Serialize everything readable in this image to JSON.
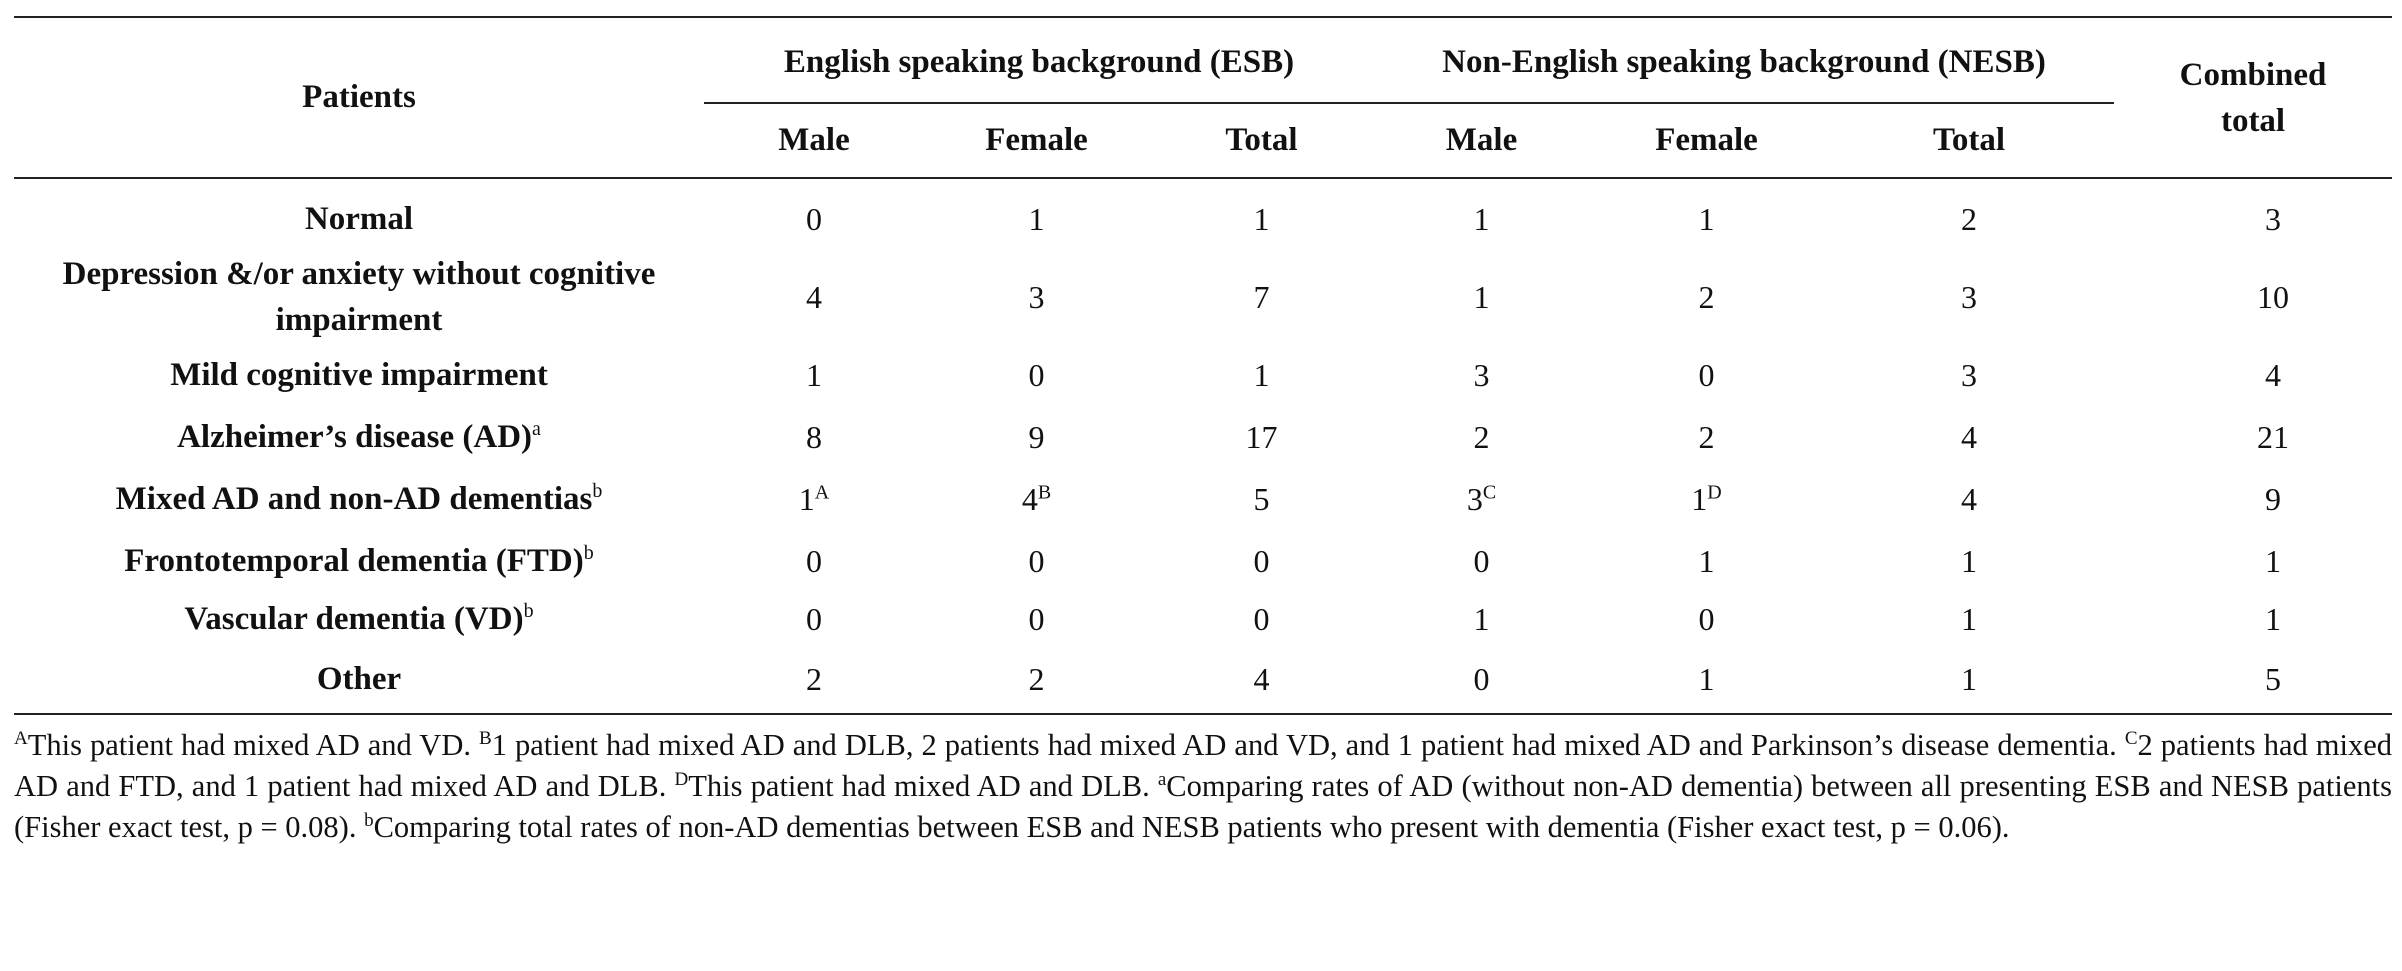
{
  "table": {
    "header": {
      "patients": "Patients",
      "esb_group": "English speaking background (ESB)",
      "nesb_group": "Non-English speaking background (NESB)",
      "combined": "Combined total",
      "sub": [
        "Male",
        "Female",
        "Total",
        "Male",
        "Female",
        "Total"
      ]
    },
    "rows": [
      {
        "label": "Normal",
        "sup": "",
        "cells": [
          {
            "v": "0"
          },
          {
            "v": "1"
          },
          {
            "v": "1"
          },
          {
            "v": "1"
          },
          {
            "v": "1"
          },
          {
            "v": "2"
          },
          {
            "v": "3"
          }
        ]
      },
      {
        "label": "Depression &/or anxiety without cognitive impairment",
        "sup": "",
        "cells": [
          {
            "v": "4"
          },
          {
            "v": "3"
          },
          {
            "v": "7"
          },
          {
            "v": "1"
          },
          {
            "v": "2"
          },
          {
            "v": "3"
          },
          {
            "v": "10"
          }
        ]
      },
      {
        "label": "Mild cognitive impairment",
        "sup": "",
        "cells": [
          {
            "v": "1"
          },
          {
            "v": "0"
          },
          {
            "v": "1"
          },
          {
            "v": "3"
          },
          {
            "v": "0"
          },
          {
            "v": "3"
          },
          {
            "v": "4"
          }
        ]
      },
      {
        "label": "Alzheimer’s disease (AD)",
        "sup": "a",
        "cells": [
          {
            "v": "8"
          },
          {
            "v": "9"
          },
          {
            "v": "17"
          },
          {
            "v": "2"
          },
          {
            "v": "2"
          },
          {
            "v": "4"
          },
          {
            "v": "21"
          }
        ]
      },
      {
        "label": "Mixed AD and non-AD dementias",
        "sup": "b",
        "cells": [
          {
            "v": "1",
            "sup": "A"
          },
          {
            "v": "4",
            "sup": "B"
          },
          {
            "v": "5"
          },
          {
            "v": "3",
            "sup": "C"
          },
          {
            "v": "1",
            "sup": "D"
          },
          {
            "v": "4"
          },
          {
            "v": "9"
          }
        ]
      },
      {
        "label": "Frontotemporal dementia (FTD)",
        "sup": "b",
        "cells": [
          {
            "v": "0"
          },
          {
            "v": "0"
          },
          {
            "v": "0"
          },
          {
            "v": "0"
          },
          {
            "v": "1"
          },
          {
            "v": "1"
          },
          {
            "v": "1"
          }
        ]
      },
      {
        "label": "Vascular dementia (VD)",
        "sup": "b",
        "cells": [
          {
            "v": "0"
          },
          {
            "v": "0"
          },
          {
            "v": "0"
          },
          {
            "v": "1"
          },
          {
            "v": "0"
          },
          {
            "v": "1"
          },
          {
            "v": "1"
          }
        ]
      },
      {
        "label": "Other",
        "sup": "",
        "cells": [
          {
            "v": "2"
          },
          {
            "v": "2"
          },
          {
            "v": "4"
          },
          {
            "v": "0"
          },
          {
            "v": "1"
          },
          {
            "v": "1"
          },
          {
            "v": "5"
          }
        ]
      }
    ]
  },
  "footnotes": [
    {
      "mark": "A",
      "text": "This patient had mixed AD and VD. "
    },
    {
      "mark": "B",
      "text": "1 patient had mixed AD and DLB, 2 patients had mixed AD and VD, and 1 patient had mixed AD and Parkinson’s disease dementia. "
    },
    {
      "mark": "C",
      "text": "2 patients had mixed AD and FTD, and 1 patient had mixed AD and DLB. "
    },
    {
      "mark": "D",
      "text": "This patient had mixed AD and DLB. "
    },
    {
      "mark": "a",
      "text": "Comparing rates of AD (without non-AD dementia) between all presenting ESB and NESB patients (Fisher exact test, p = 0.08). "
    },
    {
      "mark": "b",
      "text": "Comparing total rates of non-AD dementias between ESB and NESB patients who present with dementia (Fisher exact test, p = 0.06)."
    }
  ]
}
